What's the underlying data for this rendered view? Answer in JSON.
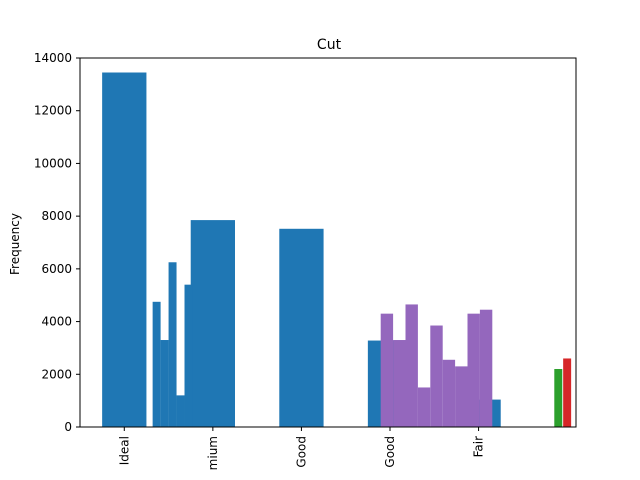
{
  "chart_data": {
    "type": "bar",
    "title": "Cut",
    "xlabel": "",
    "ylabel": "Frequency",
    "ylim": [
      0,
      14000
    ],
    "yticks": [
      0,
      2000,
      4000,
      6000,
      8000,
      10000,
      12000,
      14000
    ],
    "grid": false,
    "legend": "none",
    "categories": [
      "Ideal",
      "mium",
      "Good",
      "Good",
      "Fair"
    ],
    "series": [
      {
        "kind": "category-bars",
        "color": "#1f77b4",
        "values": [
          13450,
          7850,
          7520,
          3280,
          1040
        ]
      },
      {
        "kind": "overlay-bars",
        "color": "#1f77b4",
        "bars": [
          {
            "x": 1.365,
            "value": 4750
          },
          {
            "x": 1.455,
            "value": 3300
          },
          {
            "x": 1.545,
            "value": 6250
          },
          {
            "x": 1.635,
            "value": 1200
          },
          {
            "x": 1.725,
            "value": 5400
          }
        ]
      },
      {
        "kind": "overlay-bars",
        "color": "#9467bd",
        "bars": [
          {
            "x": 3.965,
            "value": 4300
          },
          {
            "x": 4.105,
            "value": 3300
          },
          {
            "x": 4.245,
            "value": 4650
          },
          {
            "x": 4.385,
            "value": 1500
          },
          {
            "x": 4.525,
            "value": 3850
          },
          {
            "x": 4.665,
            "value": 2550
          },
          {
            "x": 4.805,
            "value": 2300
          },
          {
            "x": 4.945,
            "value": 4300
          },
          {
            "x": 5.085,
            "value": 4450
          }
        ]
      },
      {
        "kind": "edge-bars",
        "bars": [
          {
            "x": 5.9,
            "value": 2200,
            "color": "#2ca02c"
          },
          {
            "x": 6.0,
            "value": 2600,
            "color": "#d62728"
          }
        ]
      }
    ]
  }
}
